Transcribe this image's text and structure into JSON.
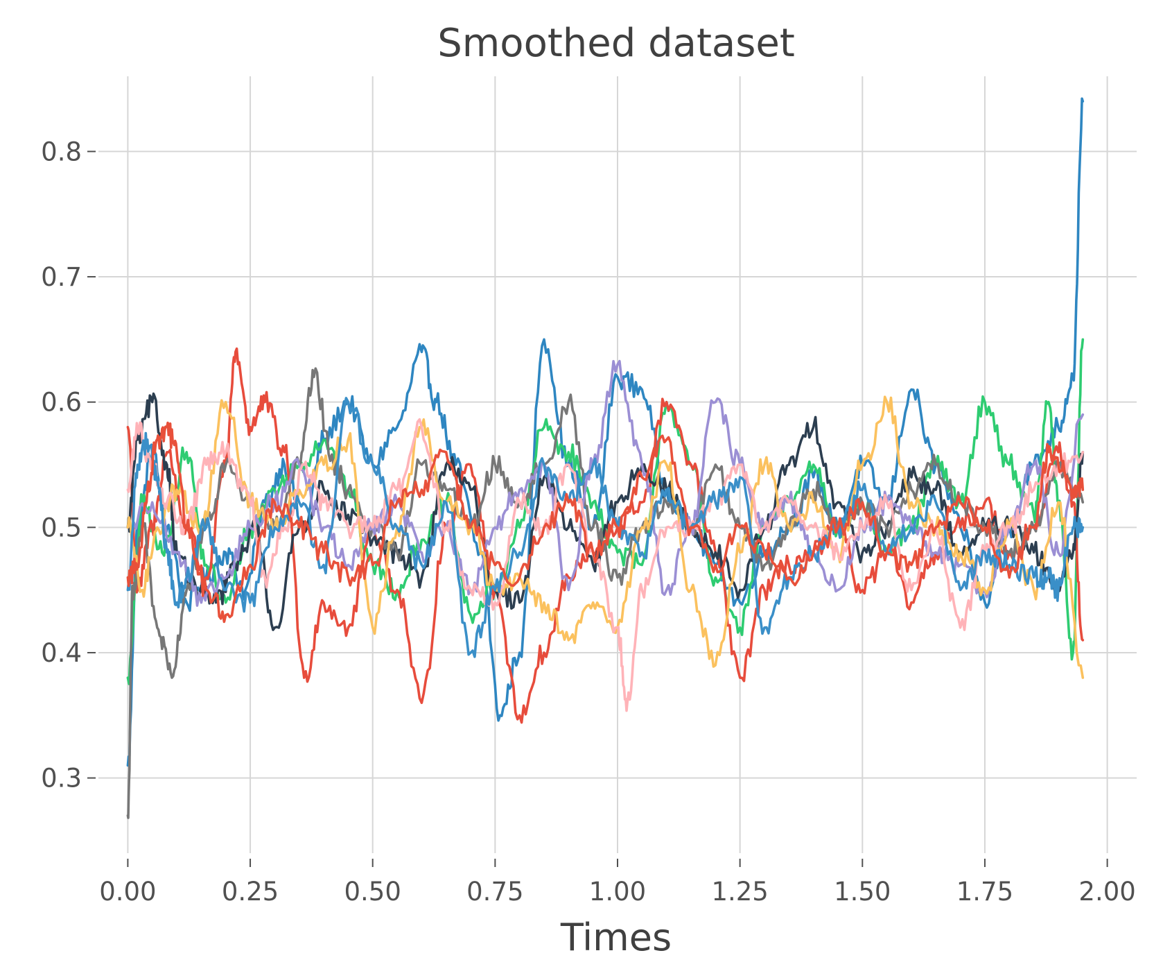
{
  "chart_data": {
    "type": "line",
    "title": "Smoothed dataset",
    "xlabel": "Times",
    "ylabel": "",
    "xlim": [
      -0.06,
      2.06
    ],
    "ylim": [
      0.24,
      0.86
    ],
    "xticks": [
      0.0,
      0.25,
      0.5,
      0.75,
      1.0,
      1.25,
      1.5,
      1.75,
      2.0
    ],
    "xtick_labels": [
      "0.00",
      "0.25",
      "0.50",
      "0.75",
      "1.00",
      "1.25",
      "1.50",
      "1.75",
      "2.00"
    ],
    "yticks": [
      0.3,
      0.4,
      0.5,
      0.6,
      0.7,
      0.8
    ],
    "ytick_labels": [
      "0.3",
      "0.4",
      "0.5",
      "0.6",
      "0.7",
      "0.8"
    ],
    "grid": true,
    "legend": "none",
    "series": [
      {
        "color": "#2e86c1",
        "x": [
          0.0,
          0.02,
          0.05,
          0.08,
          0.12,
          0.16,
          0.2,
          0.24,
          0.28,
          0.32,
          0.36,
          0.4,
          0.45,
          0.5,
          0.55,
          0.6,
          0.63,
          0.67,
          0.72,
          0.76,
          0.8,
          0.85,
          0.9,
          0.95,
          1.0,
          1.05,
          1.1,
          1.15,
          1.2,
          1.25,
          1.3,
          1.35,
          1.4,
          1.45,
          1.5,
          1.55,
          1.6,
          1.65,
          1.7,
          1.75,
          1.8,
          1.85,
          1.9,
          1.93,
          1.95
        ],
        "y": [
          0.31,
          0.5,
          0.56,
          0.5,
          0.44,
          0.46,
          0.48,
          0.45,
          0.52,
          0.55,
          0.5,
          0.57,
          0.6,
          0.55,
          0.58,
          0.64,
          0.6,
          0.55,
          0.48,
          0.35,
          0.4,
          0.65,
          0.55,
          0.5,
          0.62,
          0.61,
          0.53,
          0.5,
          0.47,
          0.44,
          0.48,
          0.5,
          0.54,
          0.5,
          0.55,
          0.52,
          0.61,
          0.55,
          0.5,
          0.44,
          0.5,
          0.55,
          0.58,
          0.62,
          0.84
        ]
      },
      {
        "color": "#2ecc71",
        "x": [
          0.0,
          0.03,
          0.07,
          0.12,
          0.16,
          0.2,
          0.25,
          0.3,
          0.35,
          0.4,
          0.45,
          0.5,
          0.55,
          0.6,
          0.65,
          0.7,
          0.75,
          0.8,
          0.85,
          0.9,
          0.95,
          1.0,
          1.05,
          1.1,
          1.15,
          1.2,
          1.25,
          1.3,
          1.35,
          1.4,
          1.45,
          1.5,
          1.55,
          1.6,
          1.65,
          1.7,
          1.75,
          1.8,
          1.85,
          1.88,
          1.9,
          1.93,
          1.95
        ],
        "y": [
          0.38,
          0.52,
          0.48,
          0.56,
          0.47,
          0.44,
          0.5,
          0.53,
          0.55,
          0.57,
          0.53,
          0.47,
          0.45,
          0.49,
          0.52,
          0.43,
          0.45,
          0.5,
          0.58,
          0.56,
          0.52,
          0.48,
          0.47,
          0.6,
          0.55,
          0.46,
          0.42,
          0.5,
          0.52,
          0.55,
          0.5,
          0.52,
          0.48,
          0.5,
          0.55,
          0.52,
          0.6,
          0.55,
          0.51,
          0.6,
          0.52,
          0.4,
          0.65
        ]
      },
      {
        "color": "#e74c3c",
        "x": [
          0.0,
          0.02,
          0.05,
          0.08,
          0.12,
          0.16,
          0.2,
          0.22,
          0.25,
          0.28,
          0.32,
          0.36,
          0.4,
          0.45,
          0.5,
          0.55,
          0.6,
          0.65,
          0.7,
          0.75,
          0.8,
          0.85,
          0.9,
          0.95,
          1.0,
          1.05,
          1.1,
          1.15,
          1.2,
          1.25,
          1.3,
          1.35,
          1.4,
          1.45,
          1.5,
          1.55,
          1.6,
          1.65,
          1.7,
          1.75,
          1.8,
          1.85,
          1.9,
          1.93,
          1.95
        ],
        "y": [
          0.58,
          0.45,
          0.5,
          0.56,
          0.5,
          0.46,
          0.55,
          0.64,
          0.58,
          0.6,
          0.56,
          0.38,
          0.44,
          0.42,
          0.5,
          0.45,
          0.36,
          0.5,
          0.55,
          0.45,
          0.35,
          0.4,
          0.46,
          0.48,
          0.5,
          0.52,
          0.6,
          0.55,
          0.48,
          0.38,
          0.45,
          0.47,
          0.48,
          0.5,
          0.45,
          0.48,
          0.44,
          0.48,
          0.5,
          0.52,
          0.48,
          0.5,
          0.56,
          0.52,
          0.41
        ]
      },
      {
        "color": "#2c3e50",
        "x": [
          0.0,
          0.02,
          0.05,
          0.08,
          0.1,
          0.14,
          0.18,
          0.22,
          0.26,
          0.3,
          0.35,
          0.4,
          0.45,
          0.5,
          0.55,
          0.6,
          0.65,
          0.7,
          0.75,
          0.8,
          0.85,
          0.9,
          0.95,
          1.0,
          1.05,
          1.1,
          1.15,
          1.2,
          1.25,
          1.3,
          1.35,
          1.4,
          1.45,
          1.5,
          1.55,
          1.6,
          1.65,
          1.7,
          1.75,
          1.8,
          1.85,
          1.9,
          1.93,
          1.95
        ],
        "y": [
          0.5,
          0.57,
          0.6,
          0.55,
          0.48,
          0.45,
          0.44,
          0.47,
          0.5,
          0.42,
          0.5,
          0.53,
          0.51,
          0.49,
          0.48,
          0.46,
          0.55,
          0.53,
          0.45,
          0.44,
          0.54,
          0.5,
          0.47,
          0.52,
          0.55,
          0.53,
          0.5,
          0.48,
          0.45,
          0.5,
          0.55,
          0.58,
          0.52,
          0.48,
          0.5,
          0.54,
          0.53,
          0.48,
          0.5,
          0.5,
          0.48,
          0.45,
          0.48,
          0.56
        ]
      },
      {
        "color": "#777777",
        "x": [
          0.0,
          0.01,
          0.03,
          0.06,
          0.09,
          0.12,
          0.16,
          0.2,
          0.25,
          0.3,
          0.35,
          0.38,
          0.42,
          0.45,
          0.5,
          0.55,
          0.6,
          0.65,
          0.7,
          0.75,
          0.8,
          0.85,
          0.9,
          0.95,
          1.0,
          1.05,
          1.1,
          1.15,
          1.2,
          1.25,
          1.3,
          1.35,
          1.4,
          1.45,
          1.5,
          1.55,
          1.6,
          1.65,
          1.7,
          1.75,
          1.8,
          1.85,
          1.9,
          1.95
        ],
        "y": [
          0.27,
          0.45,
          0.5,
          0.42,
          0.38,
          0.45,
          0.5,
          0.55,
          0.52,
          0.5,
          0.55,
          0.62,
          0.55,
          0.53,
          0.5,
          0.48,
          0.55,
          0.53,
          0.5,
          0.55,
          0.52,
          0.55,
          0.6,
          0.5,
          0.46,
          0.5,
          0.52,
          0.5,
          0.55,
          0.5,
          0.47,
          0.5,
          0.53,
          0.5,
          0.52,
          0.5,
          0.53,
          0.55,
          0.52,
          0.5,
          0.48,
          0.5,
          0.55,
          0.52
        ]
      },
      {
        "color": "#9b8fd4",
        "x": [
          0.0,
          0.05,
          0.1,
          0.15,
          0.2,
          0.25,
          0.3,
          0.35,
          0.4,
          0.45,
          0.5,
          0.55,
          0.6,
          0.65,
          0.7,
          0.75,
          0.8,
          0.85,
          0.9,
          0.95,
          1.0,
          1.05,
          1.1,
          1.15,
          1.2,
          1.25,
          1.3,
          1.35,
          1.4,
          1.45,
          1.5,
          1.55,
          1.6,
          1.65,
          1.7,
          1.75,
          1.8,
          1.85,
          1.9,
          1.95
        ],
        "y": [
          0.5,
          0.52,
          0.48,
          0.44,
          0.46,
          0.5,
          0.52,
          0.55,
          0.5,
          0.47,
          0.5,
          0.52,
          0.48,
          0.5,
          0.45,
          0.5,
          0.53,
          0.55,
          0.45,
          0.55,
          0.63,
          0.55,
          0.45,
          0.5,
          0.6,
          0.55,
          0.5,
          0.52,
          0.48,
          0.45,
          0.5,
          0.52,
          0.5,
          0.48,
          0.47,
          0.45,
          0.5,
          0.55,
          0.48,
          0.59
        ]
      },
      {
        "color": "#fbc15e",
        "x": [
          0.0,
          0.03,
          0.06,
          0.1,
          0.15,
          0.2,
          0.25,
          0.3,
          0.35,
          0.4,
          0.45,
          0.5,
          0.55,
          0.6,
          0.65,
          0.7,
          0.75,
          0.8,
          0.85,
          0.9,
          0.95,
          1.0,
          1.05,
          1.1,
          1.15,
          1.2,
          1.25,
          1.3,
          1.35,
          1.4,
          1.45,
          1.5,
          1.55,
          1.6,
          1.65,
          1.7,
          1.75,
          1.8,
          1.85,
          1.9,
          1.95
        ],
        "y": [
          0.5,
          0.45,
          0.5,
          0.53,
          0.5,
          0.6,
          0.52,
          0.5,
          0.53,
          0.55,
          0.57,
          0.42,
          0.5,
          0.58,
          0.52,
          0.5,
          0.45,
          0.46,
          0.44,
          0.41,
          0.44,
          0.42,
          0.5,
          0.55,
          0.45,
          0.39,
          0.48,
          0.55,
          0.5,
          0.52,
          0.48,
          0.55,
          0.6,
          0.52,
          0.5,
          0.48,
          0.45,
          0.5,
          0.45,
          0.52,
          0.38
        ]
      },
      {
        "color": "#ffb3b8",
        "x": [
          0.0,
          0.02,
          0.05,
          0.08,
          0.12,
          0.16,
          0.2,
          0.25,
          0.28,
          0.32,
          0.36,
          0.4,
          0.45,
          0.5,
          0.55,
          0.6,
          0.65,
          0.7,
          0.75,
          0.8,
          0.85,
          0.9,
          0.95,
          1.0,
          1.02,
          1.05,
          1.1,
          1.15,
          1.2,
          1.25,
          1.3,
          1.35,
          1.4,
          1.45,
          1.5,
          1.55,
          1.6,
          1.65,
          1.7,
          1.75,
          1.8,
          1.85,
          1.9,
          1.95
        ],
        "y": [
          0.53,
          0.58,
          0.55,
          0.52,
          0.5,
          0.55,
          0.56,
          0.52,
          0.46,
          0.5,
          0.55,
          0.52,
          0.5,
          0.5,
          0.53,
          0.58,
          0.5,
          0.45,
          0.44,
          0.52,
          0.5,
          0.55,
          0.48,
          0.42,
          0.36,
          0.45,
          0.5,
          0.5,
          0.52,
          0.55,
          0.5,
          0.52,
          0.5,
          0.48,
          0.5,
          0.52,
          0.45,
          0.5,
          0.42,
          0.48,
          0.5,
          0.53,
          0.55,
          0.56
        ]
      },
      {
        "color": "#3a8fc8",
        "x": [
          0.0,
          0.02,
          0.04,
          0.06,
          0.08,
          0.1,
          0.12,
          0.16,
          0.2,
          0.25,
          0.3,
          0.35,
          0.4,
          0.45,
          0.5,
          0.55,
          0.6,
          0.65,
          0.7,
          0.75,
          0.8,
          0.85,
          0.9,
          0.95,
          1.0,
          1.05,
          1.1,
          1.15,
          1.2,
          1.25,
          1.3,
          1.35,
          1.4,
          1.45,
          1.5,
          1.55,
          1.6,
          1.65,
          1.7,
          1.75,
          1.8,
          1.85,
          1.88,
          1.9,
          1.93,
          1.95
        ],
        "y": [
          0.45,
          0.55,
          0.57,
          0.54,
          0.48,
          0.44,
          0.46,
          0.5,
          0.45,
          0.44,
          0.5,
          0.52,
          0.47,
          0.6,
          0.55,
          0.5,
          0.47,
          0.52,
          0.4,
          0.45,
          0.48,
          0.55,
          0.52,
          0.55,
          0.5,
          0.48,
          0.53,
          0.5,
          0.52,
          0.54,
          0.42,
          0.46,
          0.48,
          0.5,
          0.53,
          0.48,
          0.5,
          0.52,
          0.45,
          0.48,
          0.47,
          0.46,
          0.46,
          0.45,
          0.5,
          0.5
        ]
      },
      {
        "color": "#e8503a",
        "x": [
          0.0,
          0.02,
          0.04,
          0.06,
          0.08,
          0.1,
          0.12,
          0.16,
          0.2,
          0.25,
          0.3,
          0.35,
          0.4,
          0.45,
          0.5,
          0.55,
          0.6,
          0.65,
          0.7,
          0.75,
          0.8,
          0.85,
          0.9,
          0.95,
          1.0,
          1.05,
          1.1,
          1.15,
          1.2,
          1.25,
          1.3,
          1.35,
          1.4,
          1.45,
          1.5,
          1.55,
          1.6,
          1.65,
          1.7,
          1.75,
          1.8,
          1.85,
          1.88,
          1.9,
          1.93,
          1.95
        ],
        "y": [
          0.46,
          0.47,
          0.53,
          0.57,
          0.58,
          0.56,
          0.5,
          0.45,
          0.43,
          0.47,
          0.52,
          0.5,
          0.48,
          0.46,
          0.47,
          0.52,
          0.53,
          0.56,
          0.5,
          0.47,
          0.46,
          0.5,
          0.52,
          0.48,
          0.5,
          0.54,
          0.57,
          0.5,
          0.47,
          0.5,
          0.48,
          0.46,
          0.48,
          0.5,
          0.52,
          0.48,
          0.47,
          0.5,
          0.52,
          0.5,
          0.46,
          0.5,
          0.56,
          0.55,
          0.53,
          0.53
        ]
      }
    ]
  }
}
